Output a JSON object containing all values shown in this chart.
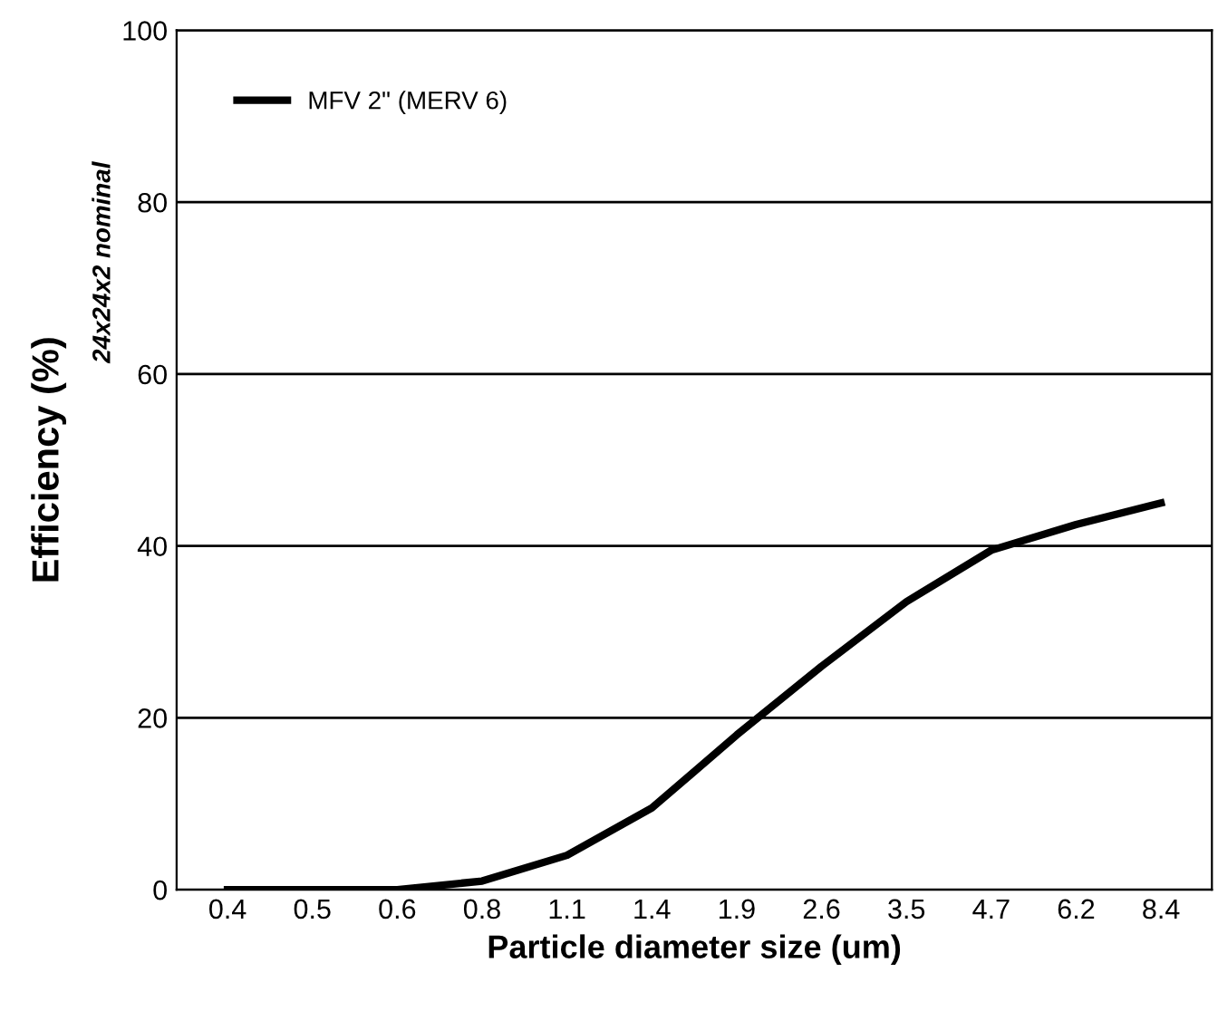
{
  "chart_data": {
    "type": "line",
    "xlabel": "Particle diameter size (um)",
    "ylabel": "Efficiency (%)",
    "annotations": [
      "24x24x2 nominal"
    ],
    "categories": [
      "0.4",
      "0.5",
      "0.6",
      "0.8",
      "1.1",
      "1.4",
      "1.9",
      "2.6",
      "3.5",
      "4.7",
      "6.2",
      "8.4"
    ],
    "series": [
      {
        "name": "MFV 2\" (MERV 6)",
        "color": "#000000",
        "values": [
          0,
          0,
          0,
          1,
          4,
          9.5,
          18,
          26,
          33.5,
          39.5,
          42.5,
          45
        ]
      }
    ],
    "ylim": [
      0,
      100
    ],
    "yticks": [
      0,
      20,
      40,
      60,
      80,
      100
    ],
    "grid": "y",
    "legend": "top left",
    "marker": "none",
    "line_style": "solid"
  }
}
